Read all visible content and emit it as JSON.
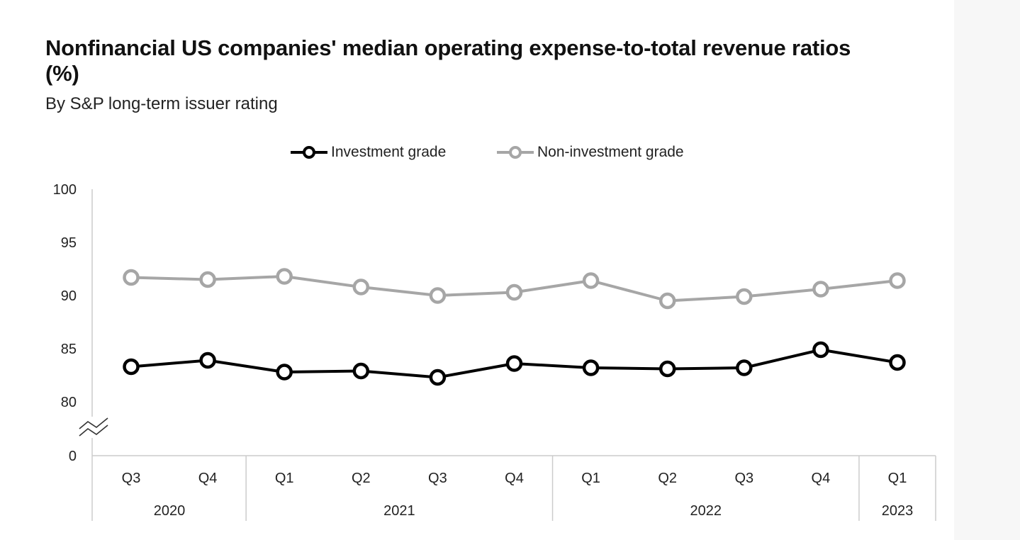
{
  "title": "Nonfinancial US companies' median operating expense-to-total revenue ratios (%)",
  "subtitle": "By S&P long-term issuer rating",
  "colors": {
    "investment_grade": "#000000",
    "non_investment_grade": "#a6a6a6",
    "axis": "#cccccc"
  },
  "legend": [
    {
      "label": "Investment grade",
      "color": "#000000"
    },
    {
      "label": "Non-investment grade",
      "color": "#a6a6a6"
    }
  ],
  "chart_data": {
    "type": "line",
    "title": "Nonfinancial US companies' median operating expense-to-total revenue ratios (%)",
    "subtitle": "By S&P long-term issuer rating",
    "categories": [
      "Q3",
      "Q4",
      "Q1",
      "Q2",
      "Q3",
      "Q4",
      "Q1",
      "Q2",
      "Q3",
      "Q4",
      "Q1"
    ],
    "year_groups": [
      {
        "label": "2020",
        "count": 2
      },
      {
        "label": "2021",
        "count": 4
      },
      {
        "label": "2022",
        "count": 4
      },
      {
        "label": "2023",
        "count": 1
      }
    ],
    "series": [
      {
        "name": "Investment grade",
        "color": "#000000",
        "values": [
          83.3,
          83.9,
          82.8,
          82.9,
          82.3,
          83.6,
          83.2,
          83.1,
          83.2,
          84.9,
          83.7
        ]
      },
      {
        "name": "Non-investment grade",
        "color": "#a6a6a6",
        "values": [
          91.7,
          91.5,
          91.8,
          90.8,
          90.0,
          90.3,
          91.4,
          89.5,
          89.9,
          90.6,
          91.4
        ]
      }
    ],
    "y_ticks": [
      "100",
      "95",
      "90",
      "85",
      "80",
      "0"
    ],
    "ylim": [
      80,
      100
    ],
    "axis_break": true,
    "grid": false,
    "legend_position": "top-center"
  }
}
